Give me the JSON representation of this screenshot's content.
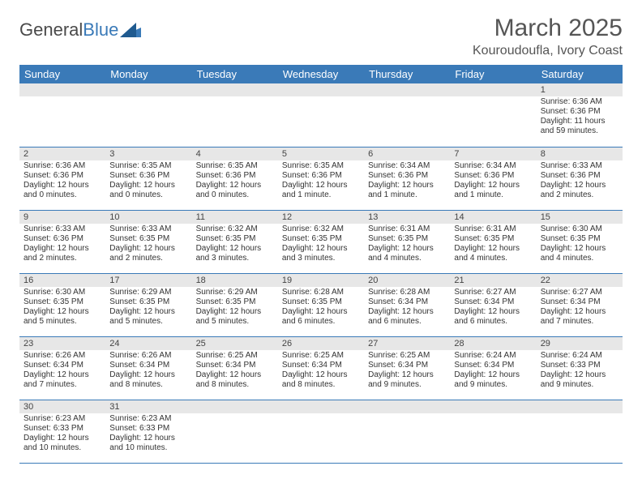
{
  "brand": {
    "part1": "General",
    "part2": "Blue"
  },
  "title": "March 2025",
  "subtitle": "Kouroudoufla, Ivory Coast",
  "colors": {
    "header_bg": "#3a7ab8",
    "header_text": "#ffffff",
    "daynum_bg": "#e7e7e7",
    "row_border": "#3a7ab8",
    "text": "#333333",
    "title_text": "#555555"
  },
  "day_labels": [
    "Sunday",
    "Monday",
    "Tuesday",
    "Wednesday",
    "Thursday",
    "Friday",
    "Saturday"
  ],
  "weeks": [
    [
      {
        "n": "",
        "sr": "",
        "ss": "",
        "dl": ""
      },
      {
        "n": "",
        "sr": "",
        "ss": "",
        "dl": ""
      },
      {
        "n": "",
        "sr": "",
        "ss": "",
        "dl": ""
      },
      {
        "n": "",
        "sr": "",
        "ss": "",
        "dl": ""
      },
      {
        "n": "",
        "sr": "",
        "ss": "",
        "dl": ""
      },
      {
        "n": "",
        "sr": "",
        "ss": "",
        "dl": ""
      },
      {
        "n": "1",
        "sr": "Sunrise: 6:36 AM",
        "ss": "Sunset: 6:36 PM",
        "dl": "Daylight: 11 hours and 59 minutes."
      }
    ],
    [
      {
        "n": "2",
        "sr": "Sunrise: 6:36 AM",
        "ss": "Sunset: 6:36 PM",
        "dl": "Daylight: 12 hours and 0 minutes."
      },
      {
        "n": "3",
        "sr": "Sunrise: 6:35 AM",
        "ss": "Sunset: 6:36 PM",
        "dl": "Daylight: 12 hours and 0 minutes."
      },
      {
        "n": "4",
        "sr": "Sunrise: 6:35 AM",
        "ss": "Sunset: 6:36 PM",
        "dl": "Daylight: 12 hours and 0 minutes."
      },
      {
        "n": "5",
        "sr": "Sunrise: 6:35 AM",
        "ss": "Sunset: 6:36 PM",
        "dl": "Daylight: 12 hours and 1 minute."
      },
      {
        "n": "6",
        "sr": "Sunrise: 6:34 AM",
        "ss": "Sunset: 6:36 PM",
        "dl": "Daylight: 12 hours and 1 minute."
      },
      {
        "n": "7",
        "sr": "Sunrise: 6:34 AM",
        "ss": "Sunset: 6:36 PM",
        "dl": "Daylight: 12 hours and 1 minute."
      },
      {
        "n": "8",
        "sr": "Sunrise: 6:33 AM",
        "ss": "Sunset: 6:36 PM",
        "dl": "Daylight: 12 hours and 2 minutes."
      }
    ],
    [
      {
        "n": "9",
        "sr": "Sunrise: 6:33 AM",
        "ss": "Sunset: 6:36 PM",
        "dl": "Daylight: 12 hours and 2 minutes."
      },
      {
        "n": "10",
        "sr": "Sunrise: 6:33 AM",
        "ss": "Sunset: 6:35 PM",
        "dl": "Daylight: 12 hours and 2 minutes."
      },
      {
        "n": "11",
        "sr": "Sunrise: 6:32 AM",
        "ss": "Sunset: 6:35 PM",
        "dl": "Daylight: 12 hours and 3 minutes."
      },
      {
        "n": "12",
        "sr": "Sunrise: 6:32 AM",
        "ss": "Sunset: 6:35 PM",
        "dl": "Daylight: 12 hours and 3 minutes."
      },
      {
        "n": "13",
        "sr": "Sunrise: 6:31 AM",
        "ss": "Sunset: 6:35 PM",
        "dl": "Daylight: 12 hours and 4 minutes."
      },
      {
        "n": "14",
        "sr": "Sunrise: 6:31 AM",
        "ss": "Sunset: 6:35 PM",
        "dl": "Daylight: 12 hours and 4 minutes."
      },
      {
        "n": "15",
        "sr": "Sunrise: 6:30 AM",
        "ss": "Sunset: 6:35 PM",
        "dl": "Daylight: 12 hours and 4 minutes."
      }
    ],
    [
      {
        "n": "16",
        "sr": "Sunrise: 6:30 AM",
        "ss": "Sunset: 6:35 PM",
        "dl": "Daylight: 12 hours and 5 minutes."
      },
      {
        "n": "17",
        "sr": "Sunrise: 6:29 AM",
        "ss": "Sunset: 6:35 PM",
        "dl": "Daylight: 12 hours and 5 minutes."
      },
      {
        "n": "18",
        "sr": "Sunrise: 6:29 AM",
        "ss": "Sunset: 6:35 PM",
        "dl": "Daylight: 12 hours and 5 minutes."
      },
      {
        "n": "19",
        "sr": "Sunrise: 6:28 AM",
        "ss": "Sunset: 6:35 PM",
        "dl": "Daylight: 12 hours and 6 minutes."
      },
      {
        "n": "20",
        "sr": "Sunrise: 6:28 AM",
        "ss": "Sunset: 6:34 PM",
        "dl": "Daylight: 12 hours and 6 minutes."
      },
      {
        "n": "21",
        "sr": "Sunrise: 6:27 AM",
        "ss": "Sunset: 6:34 PM",
        "dl": "Daylight: 12 hours and 6 minutes."
      },
      {
        "n": "22",
        "sr": "Sunrise: 6:27 AM",
        "ss": "Sunset: 6:34 PM",
        "dl": "Daylight: 12 hours and 7 minutes."
      }
    ],
    [
      {
        "n": "23",
        "sr": "Sunrise: 6:26 AM",
        "ss": "Sunset: 6:34 PM",
        "dl": "Daylight: 12 hours and 7 minutes."
      },
      {
        "n": "24",
        "sr": "Sunrise: 6:26 AM",
        "ss": "Sunset: 6:34 PM",
        "dl": "Daylight: 12 hours and 8 minutes."
      },
      {
        "n": "25",
        "sr": "Sunrise: 6:25 AM",
        "ss": "Sunset: 6:34 PM",
        "dl": "Daylight: 12 hours and 8 minutes."
      },
      {
        "n": "26",
        "sr": "Sunrise: 6:25 AM",
        "ss": "Sunset: 6:34 PM",
        "dl": "Daylight: 12 hours and 8 minutes."
      },
      {
        "n": "27",
        "sr": "Sunrise: 6:25 AM",
        "ss": "Sunset: 6:34 PM",
        "dl": "Daylight: 12 hours and 9 minutes."
      },
      {
        "n": "28",
        "sr": "Sunrise: 6:24 AM",
        "ss": "Sunset: 6:34 PM",
        "dl": "Daylight: 12 hours and 9 minutes."
      },
      {
        "n": "29",
        "sr": "Sunrise: 6:24 AM",
        "ss": "Sunset: 6:33 PM",
        "dl": "Daylight: 12 hours and 9 minutes."
      }
    ],
    [
      {
        "n": "30",
        "sr": "Sunrise: 6:23 AM",
        "ss": "Sunset: 6:33 PM",
        "dl": "Daylight: 12 hours and 10 minutes."
      },
      {
        "n": "31",
        "sr": "Sunrise: 6:23 AM",
        "ss": "Sunset: 6:33 PM",
        "dl": "Daylight: 12 hours and 10 minutes."
      },
      {
        "n": "",
        "sr": "",
        "ss": "",
        "dl": ""
      },
      {
        "n": "",
        "sr": "",
        "ss": "",
        "dl": ""
      },
      {
        "n": "",
        "sr": "",
        "ss": "",
        "dl": ""
      },
      {
        "n": "",
        "sr": "",
        "ss": "",
        "dl": ""
      },
      {
        "n": "",
        "sr": "",
        "ss": "",
        "dl": ""
      }
    ]
  ]
}
